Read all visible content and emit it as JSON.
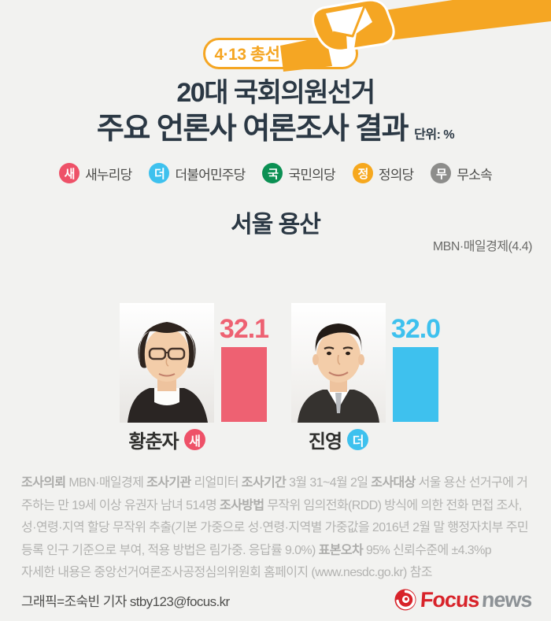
{
  "colors": {
    "background": "#f2f2f0",
    "accent_orange": "#f5a623",
    "title_dark": "#2b3844",
    "red_party": "#ee5168",
    "red_bar": "#ee6172",
    "blue_party": "#3ec1ee",
    "green_party": "#0b9053",
    "yellow_party": "#f6a81e",
    "gray_party": "#8d8d8b",
    "footer_gray": "#b3b3b1",
    "logo_red": "#d8232a",
    "logo_gray": "#8d9296"
  },
  "header": {
    "badge_label": "4·13 총선",
    "title_line1": "20대 국회의원선거",
    "title_line2": "주요 언론사 여론조사 결과",
    "unit_label": "단위: %"
  },
  "legend": {
    "items": [
      {
        "abbr": "새",
        "label": "새누리당",
        "color": "#ee5168"
      },
      {
        "abbr": "더",
        "label": "더불어민주당",
        "color": "#3ec1ee"
      },
      {
        "abbr": "국",
        "label": "국민의당",
        "color": "#0b9053"
      },
      {
        "abbr": "정",
        "label": "정의당",
        "color": "#f6a81e"
      },
      {
        "abbr": "무",
        "label": "무소속",
        "color": "#8d8d8b"
      }
    ]
  },
  "section": {
    "title": "서울 용산",
    "source": "MBN·매일경제(4.4)"
  },
  "chart_data": {
    "type": "bar",
    "title": "서울 용산",
    "subtitle": "20대 국회의원선거 주요 언론사 여론조사 결과",
    "source": "MBN·매일경제(4.4)",
    "unit": "%",
    "categories": [
      "황춘자 (새누리당)",
      "진영 (더불어민주당)"
    ],
    "values": [
      32.1,
      32.0
    ],
    "bar_colors": [
      "#ee6172",
      "#3ec1ee"
    ],
    "ylim": [
      0,
      35
    ],
    "legend_position": "none",
    "grid": false
  },
  "candidates": [
    {
      "name": "황춘자",
      "party_abbr": "새",
      "party_color": "#ee5168",
      "value_label": "32.1",
      "bar_color": "#ee6172"
    },
    {
      "name": "진영",
      "party_abbr": "더",
      "party_color": "#3ec1ee",
      "value_label": "32.0",
      "bar_color": "#3ec1ee"
    }
  ],
  "footer": {
    "segments": [
      {
        "b": true,
        "t": "조사의뢰"
      },
      {
        "b": false,
        "t": " MBN·매일경제 "
      },
      {
        "b": true,
        "t": "조사기관"
      },
      {
        "b": false,
        "t": " 리얼미터 "
      },
      {
        "b": true,
        "t": "조사기간"
      },
      {
        "b": false,
        "t": " 3월 31~4월 2일 "
      },
      {
        "b": true,
        "t": "조사대상"
      },
      {
        "b": false,
        "t": " 서울 용산 선거구에 거주하는 만 19세 이상 유권자 남녀 514명 "
      },
      {
        "b": true,
        "t": "조사방법"
      },
      {
        "b": false,
        "t": " 무작위 임의전화(RDD) 방식에 의한 전화 면접 조사, 성·연령·지역 할당 무작위 추출(기본 가중으로 성·연령·지역별 가중값을 2016년 2월 말 행정자치부 주민등록 인구 기준으로 부여, 적용 방법은 림가중. 응답률 9.0%) "
      },
      {
        "b": true,
        "t": "표본오차"
      },
      {
        "b": false,
        "t": " 95% 신뢰수준에 ±4.3%p"
      }
    ],
    "detail_line": "자세한 내용은 중앙선거여론조사공정심의위원회 홈페이지 (www.nesdc.go.kr) 참조"
  },
  "credit": {
    "text": "그래픽=조숙빈 기자 stby123@focus.kr",
    "logo_focus": "Focus",
    "logo_news": "news"
  }
}
